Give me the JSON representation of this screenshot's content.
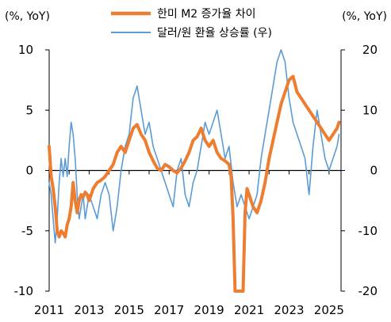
{
  "chart_data": {
    "type": "line",
    "y_left_unit": "(%, YoY)",
    "y_right_unit": "(%, YoY)",
    "xlim": [
      2011.0,
      2025.6
    ],
    "ylim_left": [
      -10,
      10
    ],
    "ylim_right": [
      -20,
      20
    ],
    "x_ticks": [
      2011,
      2013,
      2015,
      2017,
      2019,
      2021,
      2023,
      2025
    ],
    "x_tick_labels": [
      "2011",
      "2013",
      "2015",
      "2017",
      "2019",
      "2021",
      "2023",
      "2025"
    ],
    "y_left_ticks": [
      -10,
      -5,
      0,
      5,
      10
    ],
    "y_left_tick_labels": [
      "-10",
      "-5",
      "0",
      "5",
      "10"
    ],
    "y_right_ticks": [
      -20,
      -10,
      0,
      10,
      20
    ],
    "y_right_tick_labels": [
      "-20",
      "-10",
      "0",
      "10",
      "20"
    ],
    "legend_placement": "top-center",
    "series": [
      {
        "name": "한미 M2 증가율 차이",
        "axis": "left",
        "color": "#ED7D31",
        "x": [
          2011.0,
          2011.1,
          2011.2,
          2011.3,
          2011.4,
          2011.5,
          2011.6,
          2011.7,
          2011.8,
          2011.9,
          2012.0,
          2012.1,
          2012.2,
          2012.3,
          2012.4,
          2012.5,
          2012.6,
          2012.7,
          2012.8,
          2012.9,
          2013.0,
          2013.2,
          2013.4,
          2013.6,
          2013.8,
          2014.0,
          2014.2,
          2014.4,
          2014.6,
          2014.8,
          2015.0,
          2015.2,
          2015.4,
          2015.6,
          2015.8,
          2016.0,
          2016.2,
          2016.4,
          2016.6,
          2016.8,
          2017.0,
          2017.2,
          2017.4,
          2017.6,
          2017.8,
          2018.0,
          2018.2,
          2018.4,
          2018.6,
          2018.8,
          2019.0,
          2019.2,
          2019.4,
          2019.6,
          2019.8,
          2020.0,
          2020.1,
          2020.2,
          2020.3,
          2020.4,
          2020.5,
          2020.6,
          2020.7,
          2020.8,
          2020.9,
          2021.0,
          2021.2,
          2021.4,
          2021.6,
          2021.8,
          2022.0,
          2022.2,
          2022.4,
          2022.6,
          2022.8,
          2023.0,
          2023.2,
          2023.4,
          2023.6,
          2023.8,
          2024.0,
          2024.2,
          2024.4,
          2024.6,
          2024.8,
          2025.0,
          2025.2,
          2025.4,
          2025.5
        ],
        "values": [
          2.0,
          -0.5,
          -1.5,
          -3.0,
          -5.0,
          -5.5,
          -5.0,
          -5.2,
          -5.5,
          -4.5,
          -4.0,
          -3.0,
          -1.0,
          -2.5,
          -3.5,
          -2.5,
          -2.0,
          -2.2,
          -1.8,
          -2.0,
          -2.5,
          -1.5,
          -1.0,
          -0.8,
          -0.5,
          0.0,
          0.5,
          1.5,
          2.0,
          1.5,
          2.5,
          3.5,
          3.8,
          3.0,
          2.5,
          1.5,
          0.8,
          0.2,
          0.0,
          0.5,
          0.3,
          0.0,
          -0.2,
          0.2,
          0.8,
          1.5,
          2.5,
          2.8,
          3.5,
          2.5,
          2.0,
          2.5,
          1.5,
          1.0,
          0.8,
          0.5,
          -0.5,
          -4.0,
          -10.0,
          -10.0,
          -10.0,
          -10.0,
          -10.0,
          -3.5,
          -1.5,
          -2.0,
          -3.0,
          -3.5,
          -2.5,
          -1.0,
          1.0,
          2.5,
          4.0,
          5.5,
          6.5,
          7.5,
          7.8,
          6.5,
          6.0,
          5.5,
          5.0,
          4.5,
          4.0,
          3.5,
          3.0,
          2.5,
          3.0,
          3.5,
          4.0
        ]
      },
      {
        "name": "달러/원 환율 상승률 (우)",
        "axis": "right",
        "color": "#5B9BD5",
        "x": [
          2011.0,
          2011.1,
          2011.2,
          2011.3,
          2011.4,
          2011.5,
          2011.6,
          2011.7,
          2011.8,
          2011.9,
          2012.0,
          2012.1,
          2012.2,
          2012.3,
          2012.4,
          2012.5,
          2012.6,
          2012.7,
          2012.8,
          2012.9,
          2013.0,
          2013.2,
          2013.4,
          2013.6,
          2013.8,
          2014.0,
          2014.2,
          2014.4,
          2014.6,
          2014.8,
          2015.0,
          2015.2,
          2015.4,
          2015.6,
          2015.8,
          2016.0,
          2016.2,
          2016.4,
          2016.6,
          2016.8,
          2017.0,
          2017.2,
          2017.4,
          2017.6,
          2017.8,
          2018.0,
          2018.2,
          2018.4,
          2018.6,
          2018.8,
          2019.0,
          2019.2,
          2019.4,
          2019.6,
          2019.8,
          2020.0,
          2020.2,
          2020.4,
          2020.6,
          2020.8,
          2021.0,
          2021.2,
          2021.4,
          2021.6,
          2021.8,
          2022.0,
          2022.2,
          2022.4,
          2022.6,
          2022.8,
          2023.0,
          2023.2,
          2023.4,
          2023.6,
          2023.8,
          2024.0,
          2024.2,
          2024.4,
          2024.6,
          2024.8,
          2025.0,
          2025.2,
          2025.4,
          2025.5
        ],
        "values": [
          -2.0,
          -4.0,
          -8.0,
          -12.0,
          -8.0,
          -2.0,
          2.0,
          -1.0,
          2.0,
          -1.0,
          4.0,
          8.0,
          6.0,
          2.0,
          -4.0,
          -8.0,
          -6.0,
          -4.0,
          -8.0,
          -6.0,
          -4.0,
          -6.0,
          -8.0,
          -4.0,
          -2.0,
          -4.0,
          -10.0,
          -6.0,
          0.0,
          4.0,
          6.0,
          12.0,
          14.0,
          10.0,
          6.0,
          8.0,
          4.0,
          2.0,
          0.0,
          -2.0,
          -4.0,
          -6.0,
          0.0,
          2.0,
          -4.0,
          -6.0,
          -2.0,
          0.0,
          4.0,
          8.0,
          6.0,
          8.0,
          10.0,
          6.0,
          2.0,
          4.0,
          -2.0,
          -6.0,
          -4.0,
          -6.0,
          -8.0,
          -6.0,
          -4.0,
          2.0,
          6.0,
          10.0,
          14.0,
          18.0,
          20.0,
          18.0,
          12.0,
          8.0,
          6.0,
          4.0,
          2.0,
          -4.0,
          4.0,
          10.0,
          6.0,
          2.0,
          0.0,
          2.0,
          4.0,
          6.0
        ]
      }
    ]
  }
}
